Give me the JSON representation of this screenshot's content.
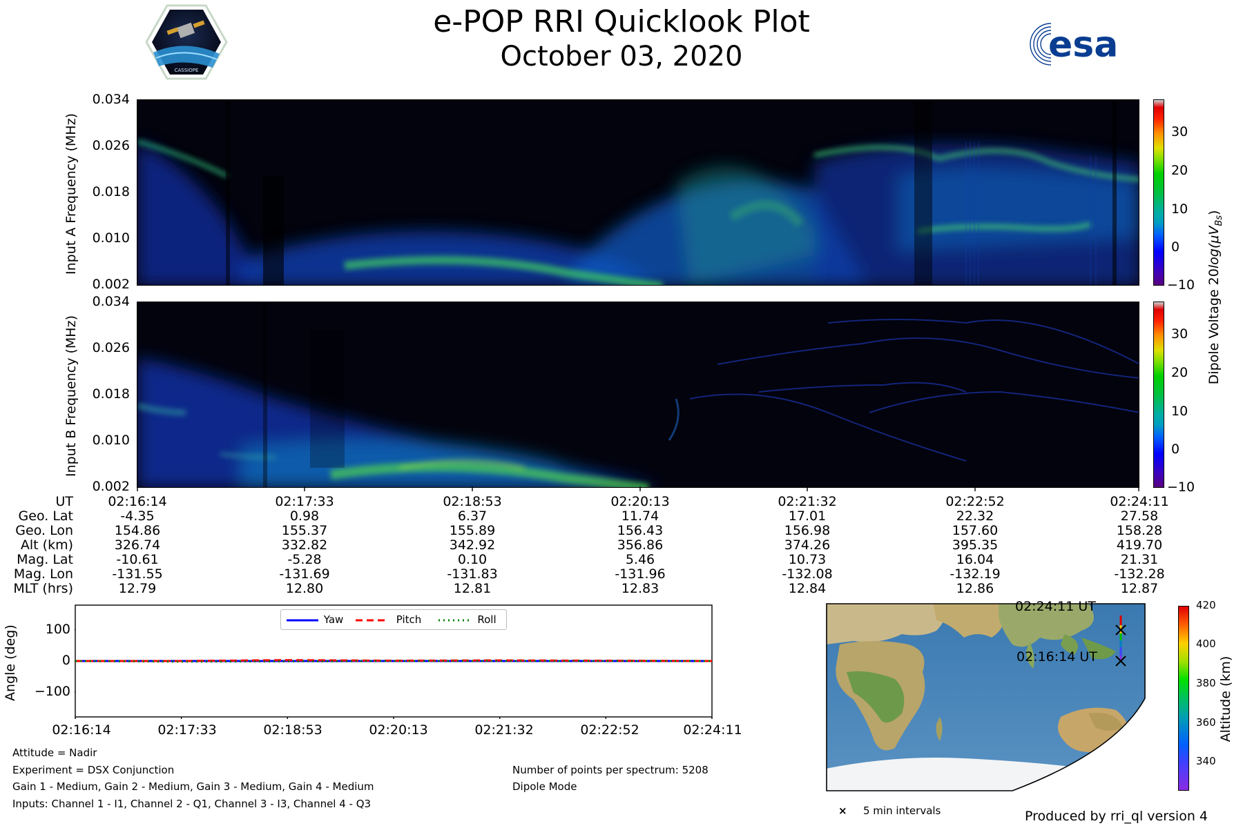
{
  "header": {
    "title": "e-POP RRI Quicklook Plot",
    "date": "October 03, 2020"
  },
  "logos": {
    "left_logo_text": "CASSIOPE",
    "right_logo_text": "esa"
  },
  "chart_data": [
    {
      "type": "heatmap",
      "name": "input-a-spectrogram",
      "ylabel": "Input A Frequency (MHz)",
      "yticks": [
        "0.002",
        "0.010",
        "0.018",
        "0.026",
        "0.034"
      ],
      "ylim": [
        0.002,
        0.034
      ]
    },
    {
      "type": "heatmap",
      "name": "input-b-spectrogram",
      "ylabel": "Input B Frequency (MHz)",
      "yticks": [
        "0.002",
        "0.010",
        "0.018",
        "0.026",
        "0.034"
      ],
      "ylim": [
        0.002,
        0.034
      ]
    },
    {
      "type": "colorbar",
      "name": "dipole-voltage-colorbar",
      "label": "Dipole Voltage 20log(μV_B s)",
      "label_main": "Dipole Voltage 20",
      "label_italic": "log(μV",
      "label_sub": "Bs",
      "label_end": ")",
      "ticks": [
        "30",
        "20",
        "10",
        "0",
        "−10"
      ],
      "range": [
        -10,
        38
      ]
    },
    {
      "type": "line",
      "name": "attitude-angles",
      "ylabel": "Angle (deg)",
      "yticks": [
        "100",
        "0",
        "−100"
      ],
      "ylim": [
        -180,
        180
      ],
      "x": [
        "02:16:14",
        "02:17:33",
        "02:18:53",
        "02:20:13",
        "02:21:32",
        "02:22:52",
        "02:24:11"
      ],
      "series": [
        {
          "name": "Yaw",
          "color": "#0000ff",
          "values": [
            0,
            0,
            0,
            0,
            0,
            0,
            0
          ]
        },
        {
          "name": "Pitch",
          "color": "#ff0000",
          "values": [
            0,
            0,
            3,
            1,
            2,
            1,
            0
          ]
        },
        {
          "name": "Roll",
          "color": "#008000",
          "values": [
            0,
            -2,
            -1,
            0,
            0,
            0,
            0
          ]
        }
      ]
    },
    {
      "type": "colorbar",
      "name": "altitude-colorbar",
      "label": "Altitude (km)",
      "ticks": [
        "420",
        "400",
        "380",
        "360",
        "340"
      ],
      "range": [
        325,
        420
      ]
    }
  ],
  "ephemeris": {
    "row_labels": [
      "UT",
      "Geo. Lat",
      "Geo. Lon",
      "Alt (km)",
      "Mag. Lat",
      "Mag. Lon",
      "MLT (hrs)"
    ],
    "columns": [
      [
        "02:16:14",
        "-4.35",
        "154.86",
        "326.74",
        "-10.61",
        "-131.55",
        "12.79"
      ],
      [
        "02:17:33",
        "0.98",
        "155.37",
        "332.82",
        "-5.28",
        "-131.69",
        "12.80"
      ],
      [
        "02:18:53",
        "6.37",
        "155.89",
        "342.92",
        "0.10",
        "-131.83",
        "12.81"
      ],
      [
        "02:20:13",
        "11.74",
        "156.43",
        "356.86",
        "5.46",
        "-131.96",
        "12.83"
      ],
      [
        "02:21:32",
        "17.01",
        "156.98",
        "374.26",
        "10.73",
        "-132.08",
        "12.84"
      ],
      [
        "02:22:52",
        "22.32",
        "157.60",
        "395.35",
        "16.04",
        "-132.19",
        "12.86"
      ],
      [
        "02:24:11",
        "27.58",
        "158.28",
        "419.70",
        "21.31",
        "-132.28",
        "12.87"
      ]
    ]
  },
  "map": {
    "end_label": "02:24:11 UT",
    "start_label": "02:16:14 UT",
    "legend_label": "5 min intervals"
  },
  "notes": {
    "attitude": "Attitude = Nadir",
    "experiment": "Experiment = DSX Conjunction",
    "gains": "Gain 1 - Medium, Gain 2 - Medium, Gain 3 - Medium, Gain 4 - Medium",
    "inputs": "Inputs: Channel 1 - I1, Channel 2 - Q1, Channel 3 - I3, Channel 4 - Q3",
    "points": "Number of points per spectrum: 5208",
    "mode": "Dipole Mode",
    "produced_by": "Produced by rri_ql version 4"
  }
}
